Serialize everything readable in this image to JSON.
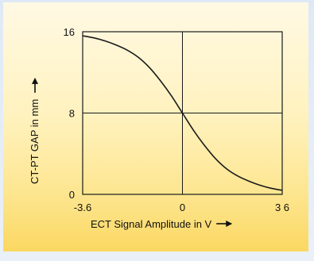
{
  "chart_data": {
    "type": "line",
    "xlabel": "ECT Signal Amplitude in V",
    "ylabel": "CT-PT GAP in mm",
    "xlim": [
      -3.6,
      3.6
    ],
    "ylim": [
      0,
      16
    ],
    "xticks": [
      "-3.6",
      "0",
      "3 6"
    ],
    "yticks": [
      "16",
      "8",
      "0"
    ],
    "grid": "crosshair at x=0 and y=8",
    "series": [
      {
        "x": [
          -3.6,
          -3.2,
          -2.8,
          -2.4,
          -2.0,
          -1.6,
          -1.2,
          -0.8,
          -0.4,
          0.0,
          0.4,
          0.8,
          1.2,
          1.6,
          2.0,
          2.4,
          2.8,
          3.2,
          3.6
        ],
        "y": [
          15.6,
          15.4,
          15.1,
          14.7,
          14.2,
          13.5,
          12.5,
          11.2,
          9.7,
          8.0,
          6.3,
          4.8,
          3.5,
          2.5,
          1.8,
          1.3,
          0.9,
          0.6,
          0.4
        ]
      }
    ],
    "line_color": "#1a1a1a",
    "background_colors": [
      "#fff9e4",
      "#fbd862"
    ]
  }
}
